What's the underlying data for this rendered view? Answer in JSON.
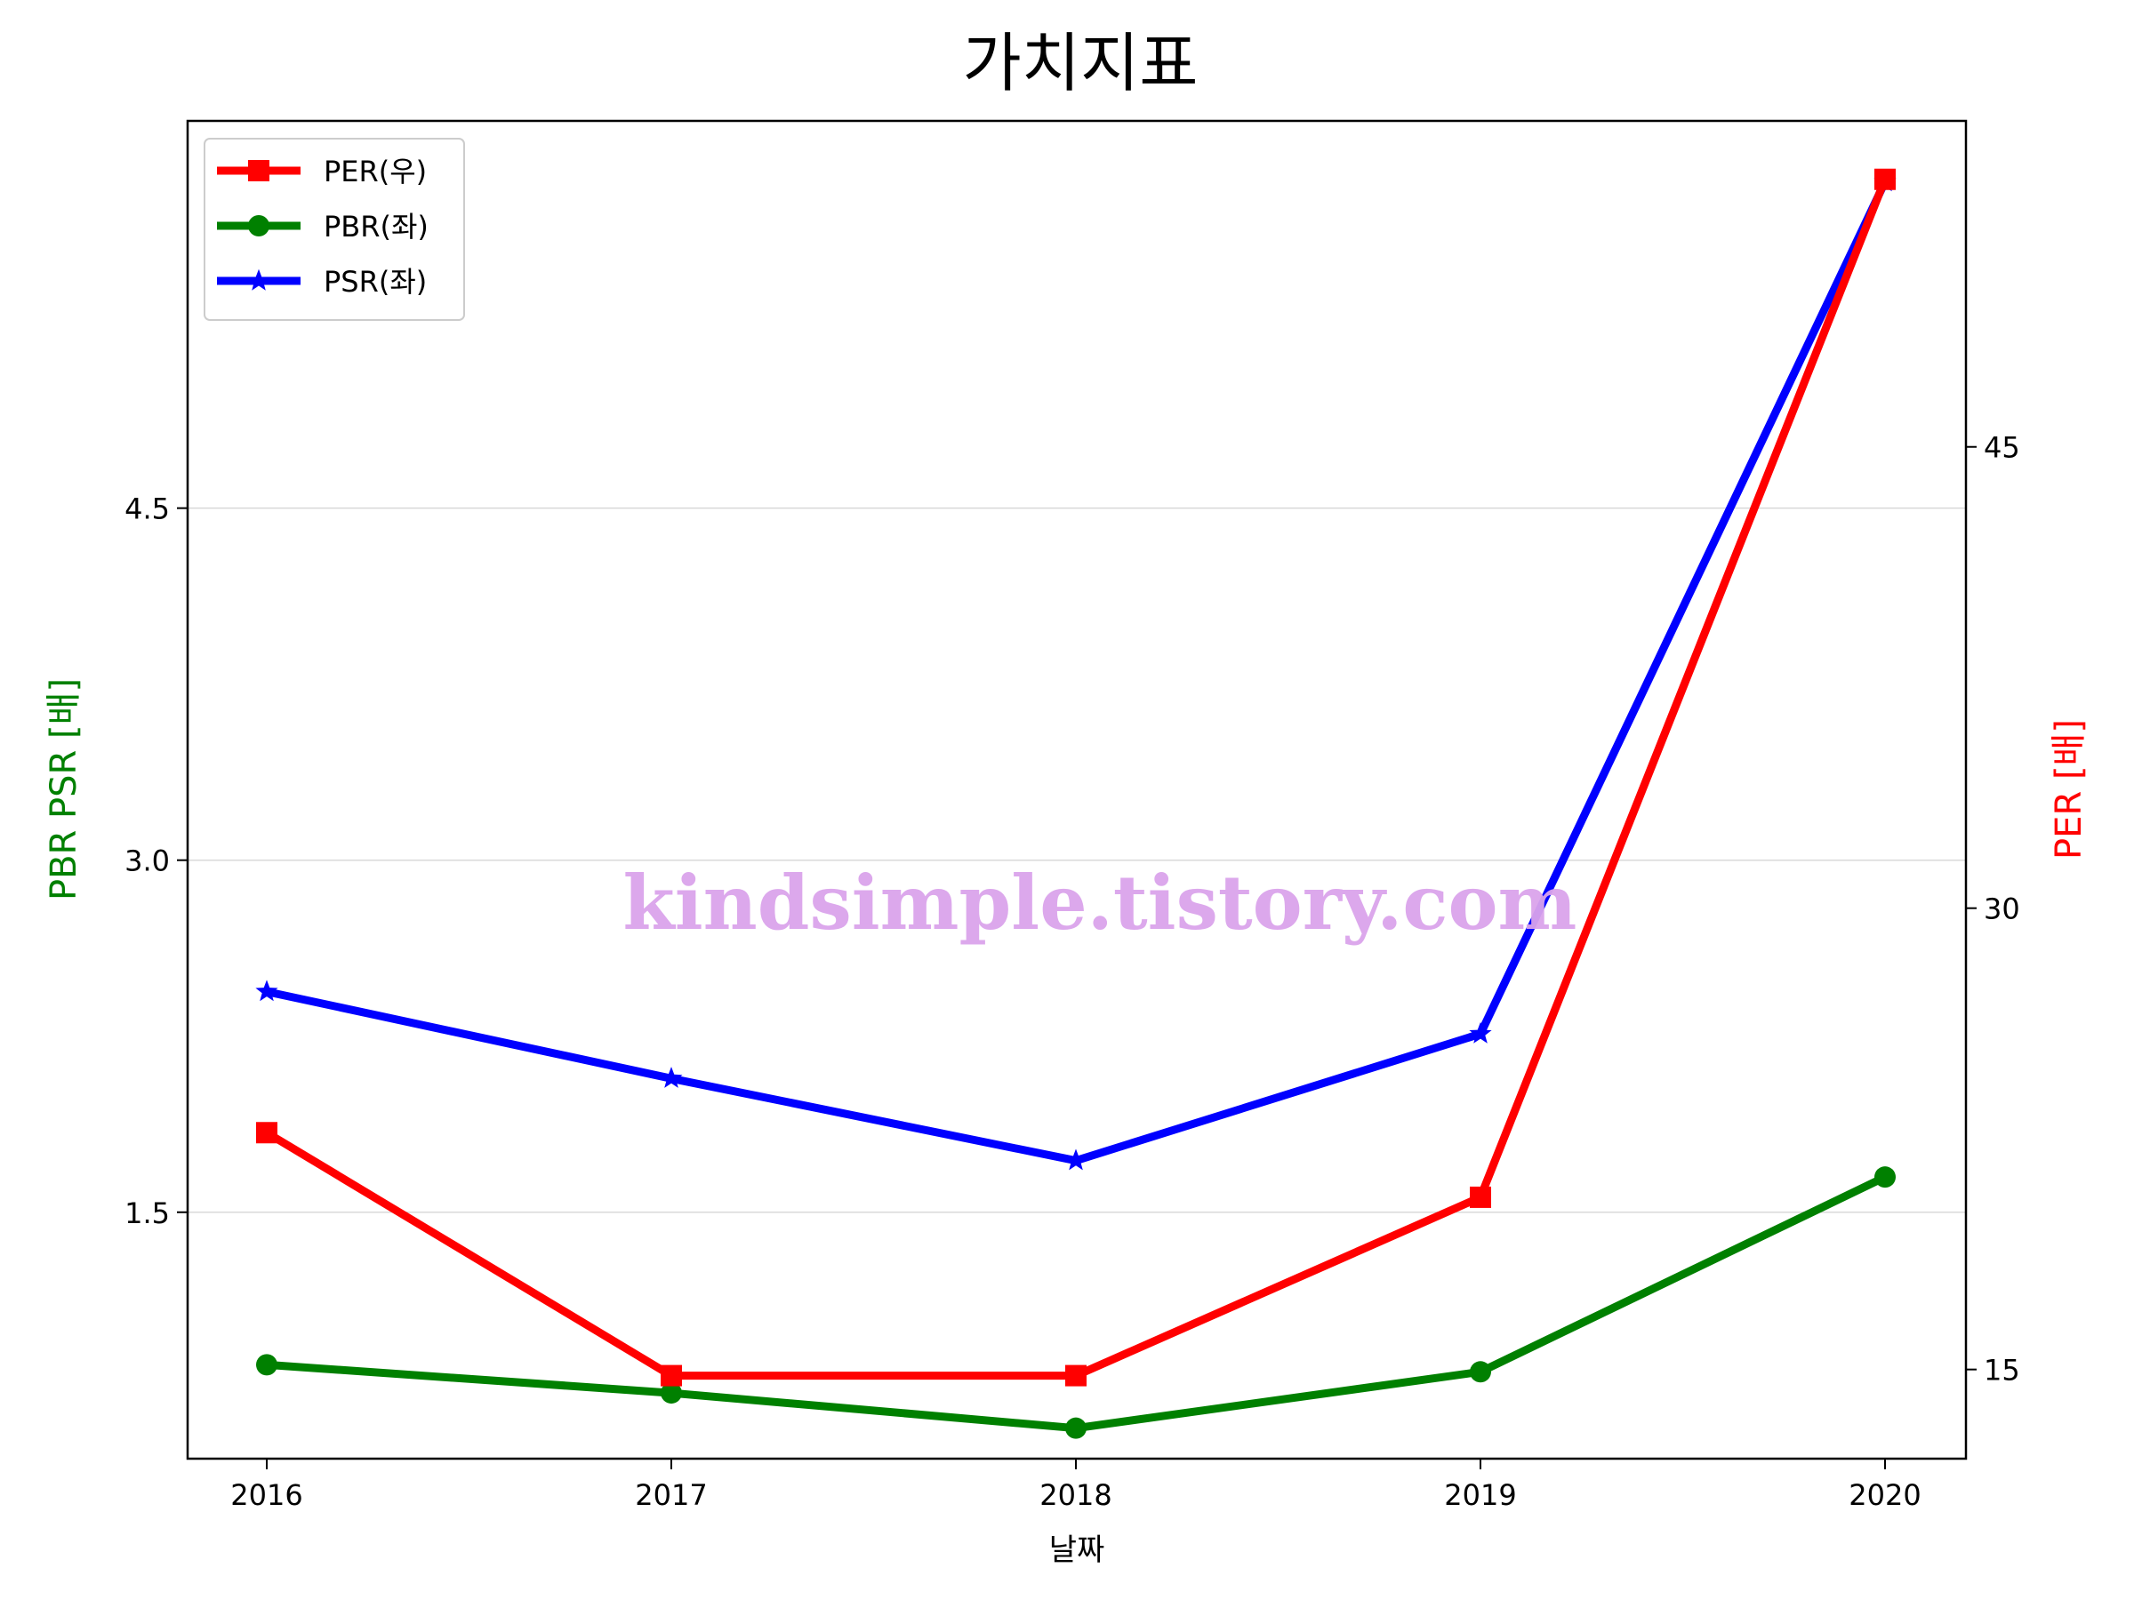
{
  "chart_data": {
    "type": "line",
    "title": "가치지표",
    "xlabel": "날짜",
    "ylabel_left": "PBR PSR [배]",
    "ylabel_right": "PER [배]",
    "categories": [
      "2016",
      "2017",
      "2018",
      "2019",
      "2020"
    ],
    "y_left": {
      "range": [
        0.45,
        6.15
      ],
      "ticks": [
        1.5,
        3.0,
        4.5
      ],
      "tick_labels": [
        "1.5",
        "3.0",
        "4.5"
      ]
    },
    "y_right": {
      "range": [
        12.1,
        55.6
      ],
      "ticks": [
        15,
        30,
        45
      ],
      "tick_labels": [
        "15",
        "30",
        "45"
      ]
    },
    "grid": "horizontal (left axis)",
    "legend_placement": "top-left",
    "series": [
      {
        "name": "PER(우)",
        "axis": "right",
        "color": "#ff0000",
        "marker": "square",
        "values": [
          22.7,
          14.8,
          14.8,
          20.6,
          53.7
        ]
      },
      {
        "name": "PBR(좌)",
        "axis": "left",
        "color": "#008000",
        "marker": "circle",
        "values": [
          0.85,
          0.73,
          0.58,
          0.82,
          1.65
        ]
      },
      {
        "name": "PSR(좌)",
        "axis": "left",
        "color": "#0000ff",
        "marker": "star",
        "values": [
          2.44,
          2.07,
          1.72,
          2.26,
          5.89
        ]
      }
    ],
    "watermark": "kindsimple.tistory.com"
  }
}
